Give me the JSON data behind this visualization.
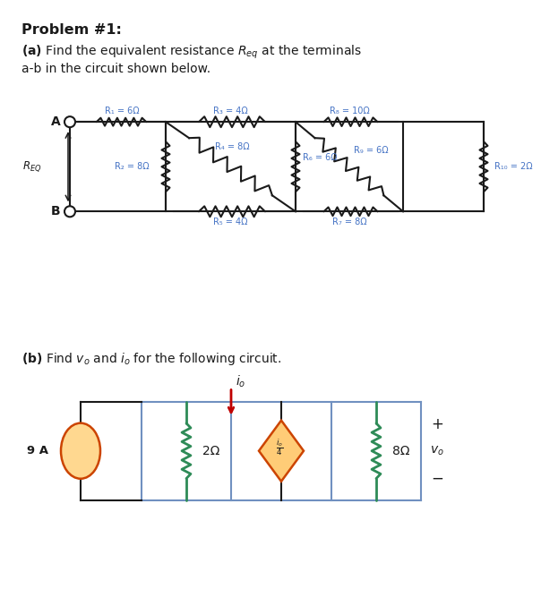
{
  "title": "Problem #1:",
  "part_a_line1": "(a) Find the equivalent resistance $R_{eq}$ at the terminals",
  "part_a_line2": "a-b in the circuit shown below.",
  "part_b_line": "(b) Find $v_o$ and $i_o$ for the following circuit.",
  "R1": "R₁ = 6Ω",
  "R2": "R₂ = 8Ω",
  "R3": "R₃ = 4Ω",
  "R4": "R₄ = 8Ω",
  "R5": "R₅ = 4Ω",
  "R6": "R₆ = 6Ω",
  "R7": "R₇ = 8Ω",
  "R8": "R₈ = 10Ω",
  "R9": "R₉ = 6Ω",
  "R10": "R₁₀ = 2Ω",
  "color_blue": "#4472C4",
  "color_black": "#1a1a1a",
  "color_red": "#C00000",
  "color_green": "#2E8B57",
  "color_orange_fill": "#FFCC88",
  "color_orange_fill2": "#FFD080",
  "color_box": "#7090C0",
  "bg_color": "#ffffff",
  "node_A": "A",
  "node_B": "B",
  "REQ_label": "$R_{EQ}$",
  "source_9A": "9 A",
  "res2_label": "2Ω",
  "res8_label": "8Ω",
  "dep_label": "$\\frac{i_o}{4}$",
  "io_label": "$i_o$",
  "vo_label": "$v_o$"
}
